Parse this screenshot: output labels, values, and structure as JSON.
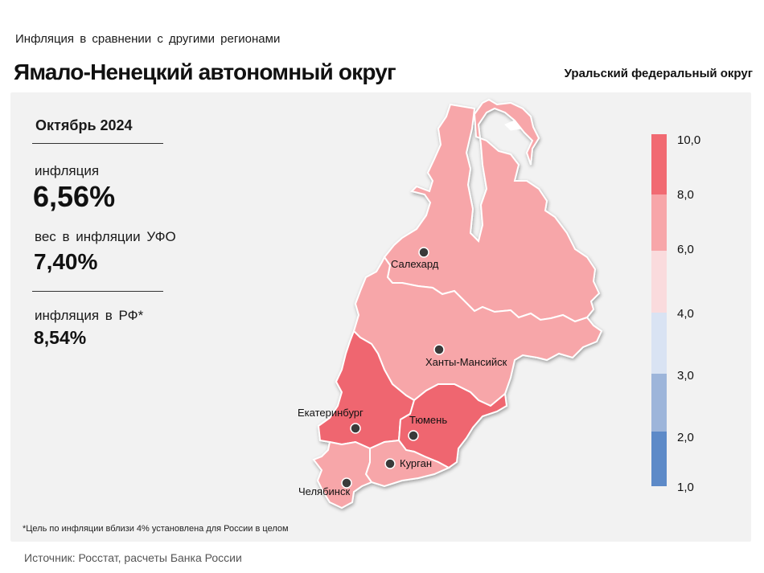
{
  "header": {
    "subtitle": "Инфляция  в сравнении  с другими  регионами",
    "title": "Ямало-Ненецкий автономный округ",
    "district": "Уральский федеральный округ"
  },
  "stats": {
    "period": "Октябрь 2024",
    "inflation_label": "инфляция",
    "inflation_value": "6,56%",
    "weight_label": "вес в инфляции  УФО",
    "weight_value": "7,40%",
    "russia_label": "инфляция  в РФ*",
    "russia_value": "8,54%"
  },
  "map": {
    "regions": [
      {
        "name": "Ямало-Ненецкий АО",
        "inflation_bin": "6,0–8,0",
        "color": "#f7a6a9"
      },
      {
        "name": "Ханты-Мансийский АО",
        "inflation_bin": "6,0–8,0",
        "color": "#f7a6a9"
      },
      {
        "name": "Свердловская область",
        "inflation_bin": "8,0–10,0",
        "color": "#ef6670"
      },
      {
        "name": "Тюменская область",
        "inflation_bin": "8,0–10,0",
        "color": "#ef6670"
      },
      {
        "name": "Курганская область",
        "inflation_bin": "6,0–8,0",
        "color": "#f7a6a9"
      },
      {
        "name": "Челябинская область",
        "inflation_bin": "6,0–8,0",
        "color": "#f7a6a9"
      }
    ],
    "cities": [
      {
        "name": "Салехард"
      },
      {
        "name": "Ханты-Мансийск"
      },
      {
        "name": "Екатеринбург"
      },
      {
        "name": "Тюмень"
      },
      {
        "name": "Курган"
      },
      {
        "name": "Челябинск"
      }
    ]
  },
  "legend": {
    "bins": [
      {
        "from": "8,0",
        "to": "10,0",
        "color": "#f16a72"
      },
      {
        "from": "6,0",
        "to": "8,0",
        "color": "#f7a6a9"
      },
      {
        "from": "4,0",
        "to": "6,0",
        "color": "#fadbdd"
      },
      {
        "from": "3,0",
        "to": "4,0",
        "color": "#d9e3f3"
      },
      {
        "from": "2,0",
        "to": "3,0",
        "color": "#9db5da"
      },
      {
        "from": "1,0",
        "to": "2,0",
        "color": "#5d8ac8"
      }
    ],
    "labels": [
      "10,0",
      "8,0",
      "6,0",
      "4,0",
      "3,0",
      "2,0",
      "1,0"
    ]
  },
  "footnote": "*Цель по инфляции вблизи 4% установлена для России в целом",
  "source": "Источник: Росстат, расчеты Банка России"
}
